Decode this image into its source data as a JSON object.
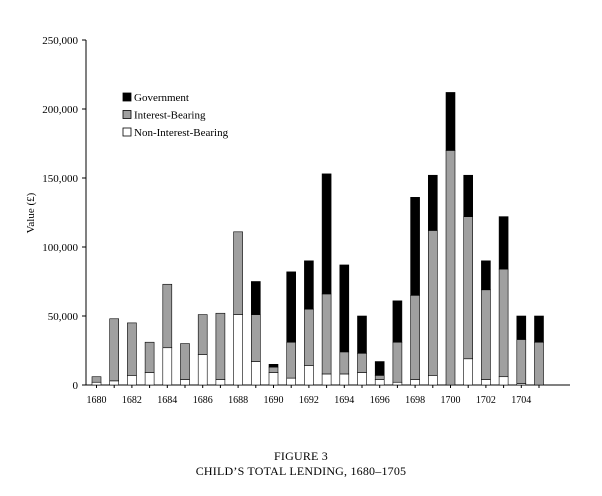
{
  "chart_data": {
    "type": "bar",
    "stacked": true,
    "ylabel": "Value (£)",
    "xlabel": "",
    "ylim": [
      0,
      250000
    ],
    "yticks": [
      0,
      50000,
      100000,
      150000,
      200000,
      250000
    ],
    "ytick_labels": [
      "0",
      "50,000",
      "100,000",
      "150,000",
      "200,000",
      "250,000"
    ],
    "xtick_labels": [
      "1680",
      "1682",
      "1684",
      "1686",
      "1688",
      "1690",
      "1692",
      "1694",
      "1696",
      "1698",
      "1700",
      "1702",
      "1704"
    ],
    "categories": [
      1680,
      1681,
      1682,
      1683,
      1684,
      1685,
      1686,
      1687,
      1688,
      1689,
      1690,
      1691,
      1692,
      1693,
      1694,
      1695,
      1696,
      1697,
      1698,
      1699,
      1700,
      1701,
      1702,
      1703,
      1704,
      1705
    ],
    "series": [
      {
        "name": "Non-Interest-Bearing",
        "color": "#ffffff",
        "values": [
          2000,
          3000,
          7000,
          9000,
          27000,
          4000,
          22000,
          4000,
          51000,
          17000,
          9000,
          5000,
          14000,
          8000,
          8000,
          9000,
          4000,
          2000,
          4000,
          7000,
          0,
          19000,
          4000,
          6000,
          1000,
          0
        ]
      },
      {
        "name": "Interest-Bearing",
        "color": "#a0a0a0",
        "values": [
          4000,
          45000,
          38000,
          22000,
          46000,
          26000,
          29000,
          48000,
          60000,
          34000,
          4000,
          26000,
          41000,
          58000,
          16000,
          14000,
          3000,
          29000,
          61000,
          105000,
          170000,
          103000,
          65000,
          78000,
          32000,
          31000
        ]
      },
      {
        "name": "Government",
        "color": "#000000",
        "values": [
          0,
          0,
          0,
          0,
          0,
          0,
          0,
          0,
          0,
          24000,
          2000,
          51000,
          35000,
          87000,
          63000,
          27000,
          10000,
          30000,
          71000,
          40000,
          42000,
          30000,
          21000,
          38000,
          17000,
          19000
        ]
      }
    ],
    "legend": "top-left"
  },
  "caption": {
    "figure_label": "FIGURE 3",
    "title": "CHILD’S TOTAL LENDING, 1680–1705"
  }
}
